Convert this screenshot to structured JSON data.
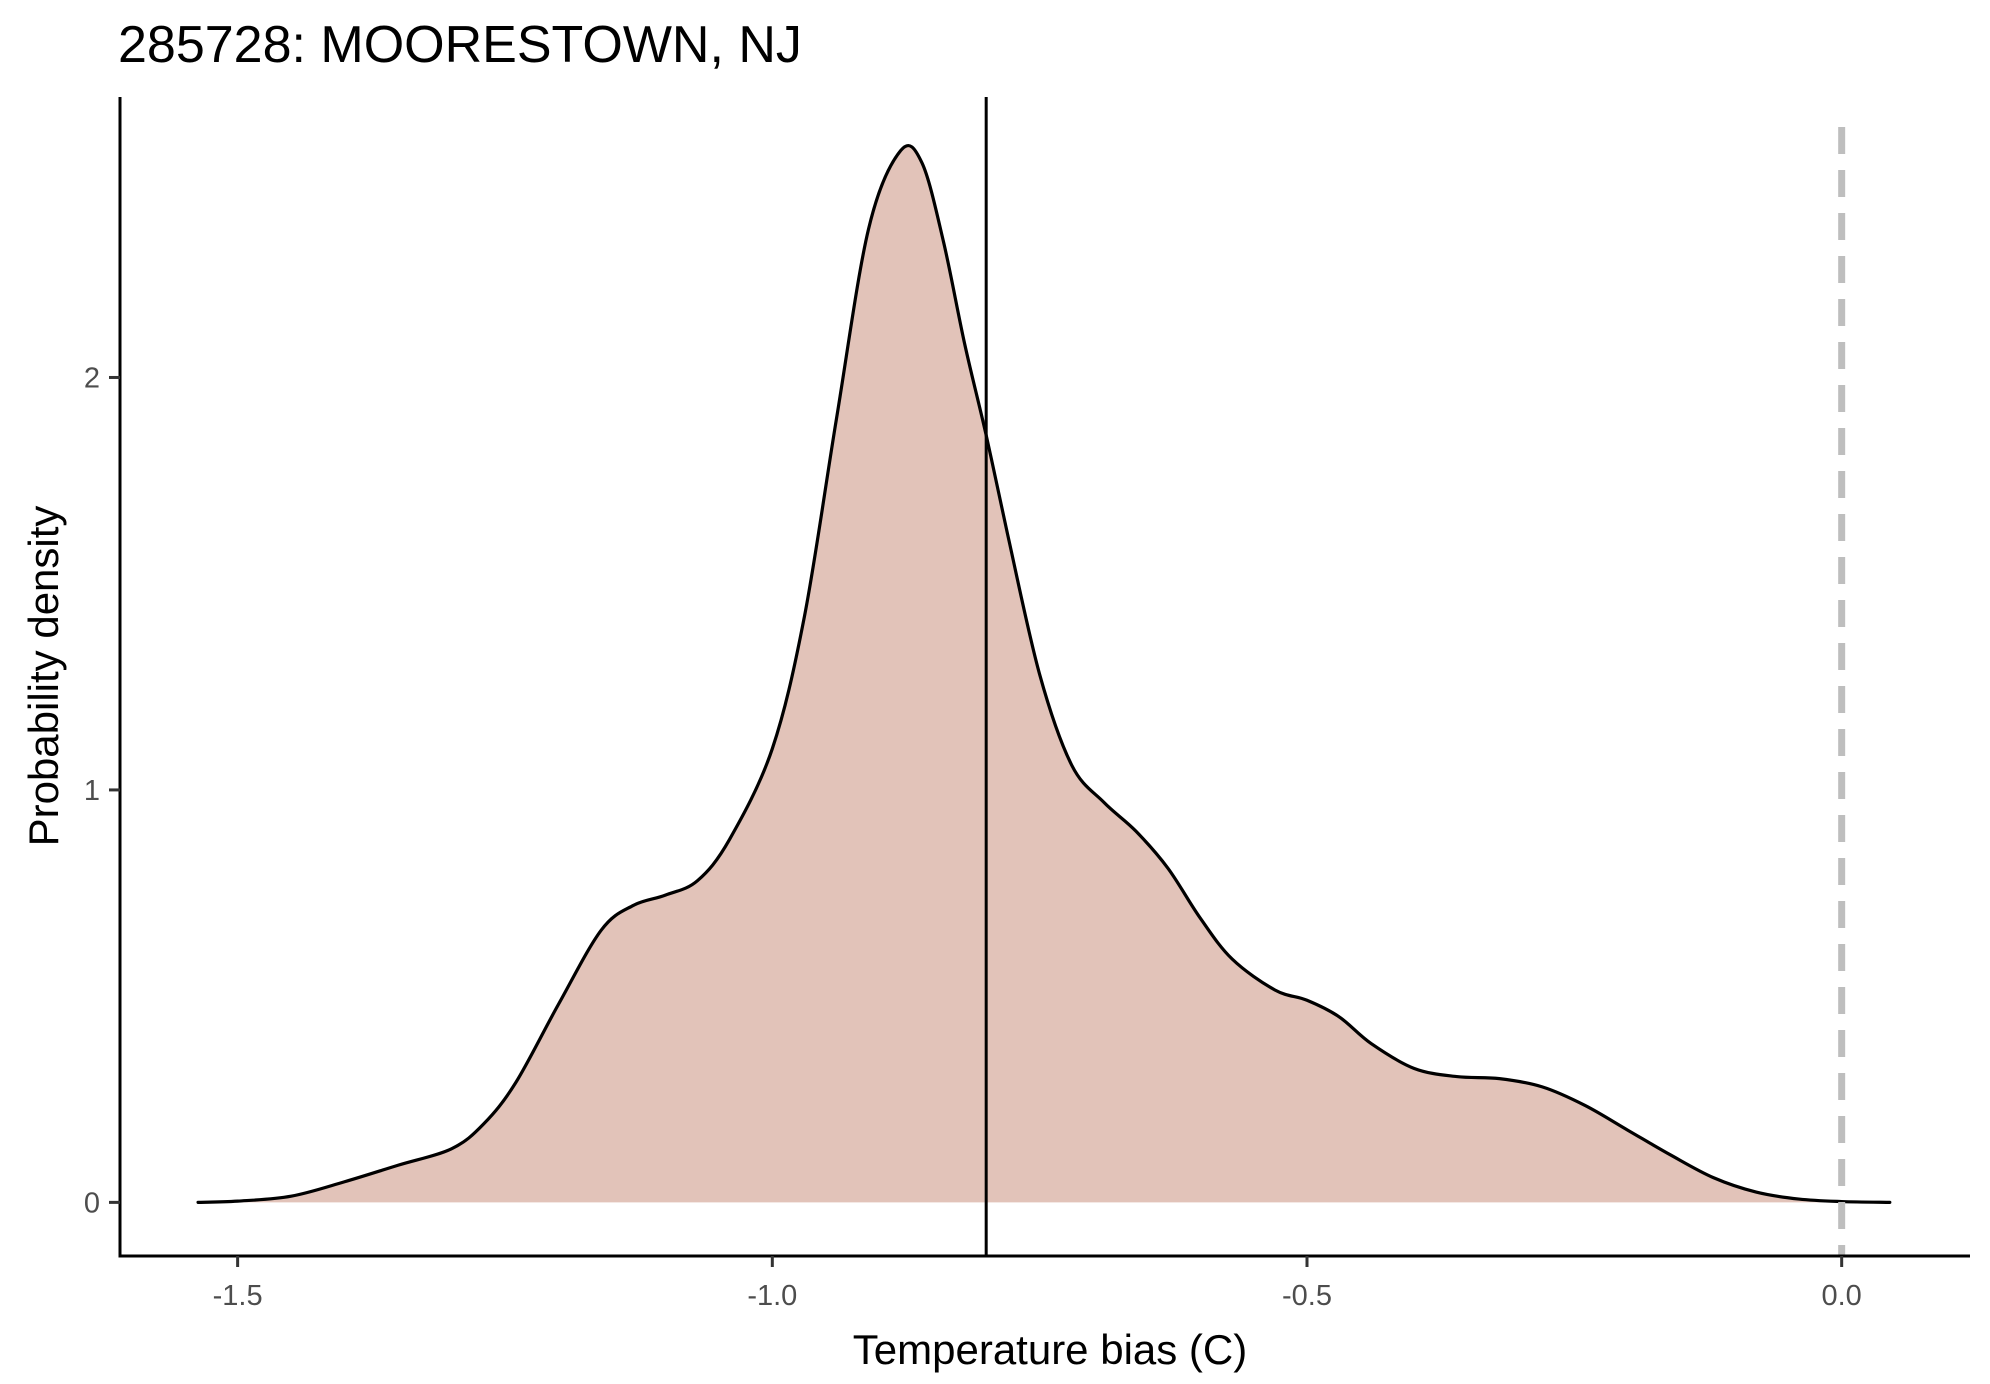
{
  "chart_data": {
    "type": "area",
    "title": "285728: MOORESTOWN, NJ",
    "xlabel": "Temperature bias (C)",
    "ylabel": "Probability density",
    "xlim": [
      -1.61,
      0.12
    ],
    "ylim": [
      -0.13,
      2.68
    ],
    "x_ticks": [
      {
        "value": -1.5,
        "label": "-1.5"
      },
      {
        "value": -1.0,
        "label": "-1.0"
      },
      {
        "value": -0.5,
        "label": "-0.5"
      },
      {
        "value": 0.0,
        "label": "0.0"
      }
    ],
    "y_ticks": [
      {
        "value": 0,
        "label": "0"
      },
      {
        "value": 1,
        "label": "1"
      },
      {
        "value": 2,
        "label": "2"
      }
    ],
    "grid": false,
    "legend": "none",
    "fill_color": "#e2c3b9",
    "line_color": "#000000",
    "density": {
      "x": [
        -1.537,
        -1.5,
        -1.45,
        -1.4,
        -1.35,
        -1.3,
        -1.27,
        -1.24,
        -1.2,
        -1.16,
        -1.13,
        -1.1,
        -1.07,
        -1.04,
        -1.0,
        -0.97,
        -0.94,
        -0.91,
        -0.88,
        -0.86,
        -0.84,
        -0.82,
        -0.8,
        -0.78,
        -0.75,
        -0.72,
        -0.69,
        -0.66,
        -0.63,
        -0.6,
        -0.57,
        -0.53,
        -0.5,
        -0.47,
        -0.44,
        -0.4,
        -0.36,
        -0.32,
        -0.28,
        -0.24,
        -0.2,
        -0.16,
        -0.12,
        -0.08,
        -0.04,
        0.0,
        0.045
      ],
      "y": [
        0.0,
        0.003,
        0.015,
        0.05,
        0.09,
        0.13,
        0.19,
        0.29,
        0.48,
        0.66,
        0.72,
        0.745,
        0.78,
        0.88,
        1.1,
        1.42,
        1.9,
        2.36,
        2.55,
        2.52,
        2.33,
        2.08,
        1.86,
        1.62,
        1.28,
        1.06,
        0.97,
        0.9,
        0.81,
        0.69,
        0.59,
        0.515,
        0.49,
        0.45,
        0.385,
        0.325,
        0.305,
        0.3,
        0.28,
        0.235,
        0.175,
        0.115,
        0.06,
        0.025,
        0.008,
        0.002,
        0.0
      ]
    },
    "reference_lines": [
      {
        "x": -0.8,
        "style": "solid",
        "color": "#000000"
      },
      {
        "x": 0.0,
        "style": "dashed",
        "color": "#bebebe"
      }
    ]
  }
}
